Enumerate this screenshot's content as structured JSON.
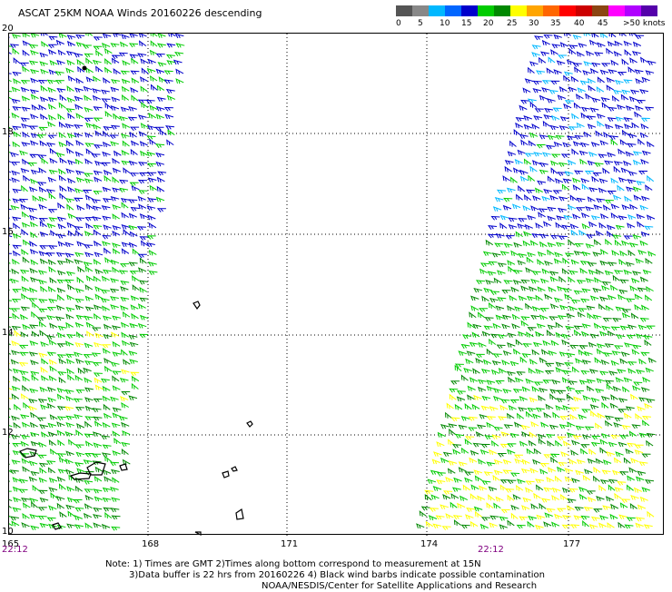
{
  "title": "ASCAT 25KM NOAA Winds 20160226 descending",
  "scale": {
    "colors": [
      "#555555",
      "#888888",
      "#00b8ff",
      "#0066ff",
      "#0000cc",
      "#00cc00",
      "#008800",
      "#ffff00",
      "#ffa500",
      "#ff6600",
      "#ff0000",
      "#cc0000",
      "#8b4513",
      "#ff00ff",
      "#b000ff",
      "#5500aa"
    ],
    "labels": [
      "0",
      "5",
      "10",
      "15",
      "20",
      "25",
      "30",
      "35",
      "40",
      "45",
      ">50 knots"
    ]
  },
  "lat_labels": [
    "20",
    "18",
    "16",
    "14",
    "12",
    "10"
  ],
  "lon_labels": [
    "165",
    "168",
    "171",
    "174",
    "177"
  ],
  "time_labels": [
    "22:12",
    "22:12"
  ],
  "notes": [
    "Note: 1) Times are GMT 2)Times along bottom correspond to measurement at 15N",
    "3)Data buffer is 22 hrs from 20160226 4) Black wind barbs indicate possible contamination",
    "NOAA/NESDIS/Center for Satellite Applications and Research"
  ],
  "legend_colors": {
    "barb_low": "#0000cc",
    "barb_mid": "#00cc00",
    "barb_green_dark": "#008800",
    "barb_high": "#ffff00",
    "barb_cyan": "#00b8ff",
    "contaminated": "#000000",
    "time_label": "#800080",
    "grid": "#000000"
  }
}
